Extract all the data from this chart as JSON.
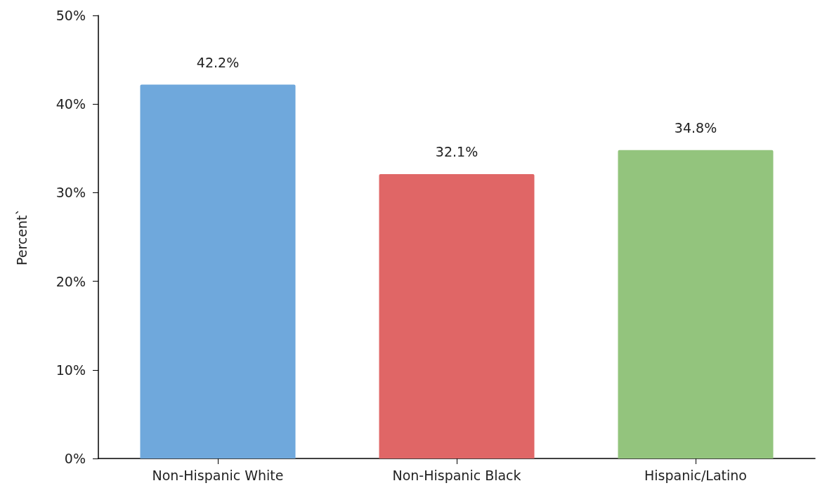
{
  "chart_data": {
    "type": "bar",
    "ylabel": "Percent`",
    "categories": [
      "Non-Hispanic White",
      "Non-Hispanic Black",
      "Hispanic/Latino"
    ],
    "values": [
      42.2,
      32.1,
      34.8
    ],
    "colors": [
      "#6fa8dc",
      "#e06666",
      "#93c47d"
    ],
    "value_labels": [
      "42.2%",
      "32.1%",
      "34.8%"
    ],
    "ylim": [
      0,
      50
    ],
    "yticks": [
      {
        "value": 0,
        "label": "0%"
      },
      {
        "value": 10,
        "label": "10%"
      },
      {
        "value": 20,
        "label": "20%"
      },
      {
        "value": 30,
        "label": "30%"
      },
      {
        "value": 40,
        "label": "40%"
      },
      {
        "value": 50,
        "label": "50%"
      }
    ],
    "grid": false
  }
}
